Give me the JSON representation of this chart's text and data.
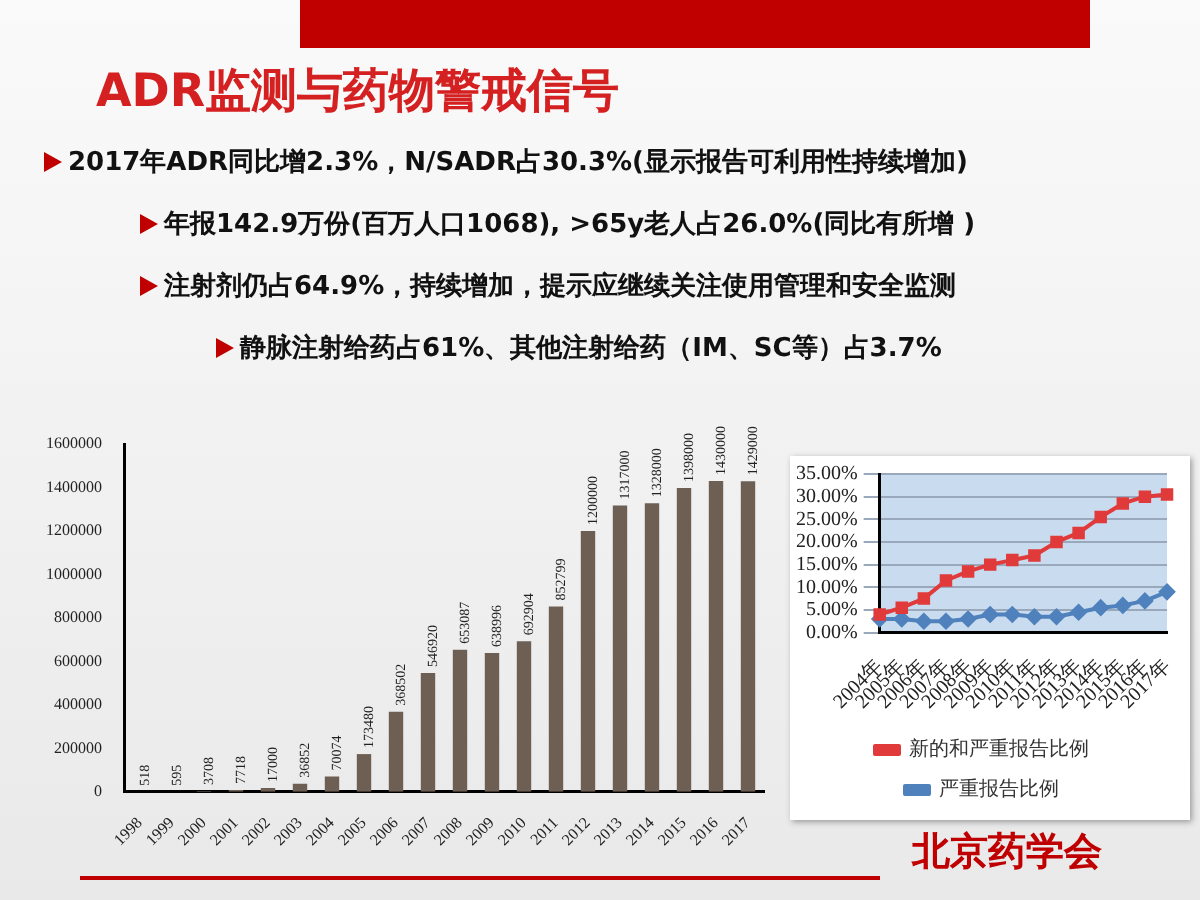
{
  "chart_data": [
    {
      "type": "bar",
      "title": "ADR监测与药物警戒信号",
      "annotations": [
        "2017年ADR同比增2.3%，N/SADR占30.3%(显示报告可利用性持续增加)",
        "年报142.9万份(百万人口1068), >65y老人占26.0%(同比有所增 )",
        "注射剂仍占64.9%，持续增加，提示应继续关注使用管理和安全监测",
        "静脉注射给药占61%、其他注射给药（IM、SC等）占3.7%",
        "北京药学会"
      ],
      "categories": [
        "1998",
        "1999",
        "2000",
        "2001",
        "2002",
        "2003",
        "2004",
        "2005",
        "2006",
        "2007",
        "2008",
        "2009",
        "2010",
        "2011",
        "2012",
        "2013",
        "2014",
        "2015",
        "2016",
        "2017"
      ],
      "values": [
        518,
        595,
        3708,
        7718,
        17000,
        36852,
        70074,
        173480,
        368502,
        546920,
        653087,
        638996,
        692904,
        852799,
        1200000,
        1317000,
        1328000,
        1398000,
        1430000,
        1429000
      ],
      "color": "#6e5f55",
      "ylim": [
        0,
        1600000
      ],
      "yticks": [
        0,
        200000,
        400000,
        600000,
        800000,
        1000000,
        1200000,
        1400000,
        1600000
      ],
      "data_labels": true
    },
    {
      "type": "line",
      "categories": [
        "2004年",
        "2005年",
        "2006年",
        "2007年",
        "2008年",
        "2009年",
        "2010年",
        "2011年",
        "2012年",
        "2013年",
        "2014年",
        "2015年",
        "2016年",
        "2017年"
      ],
      "series": [
        {
          "name": "严重报告比例",
          "color": "#4f81bd",
          "marker": "diamond",
          "values": [
            3,
            3,
            2.5,
            2.5,
            3,
            4,
            4,
            3.5,
            3.5,
            4.5,
            5.5,
            6,
            7,
            9
          ]
        },
        {
          "name": "新的和严重报告比例",
          "color": "#e03a3a",
          "marker": "square",
          "values": [
            4,
            5.5,
            7.5,
            11.5,
            13.5,
            15,
            16,
            17,
            20,
            22,
            25.5,
            28.5,
            30,
            30.5
          ]
        }
      ],
      "ylim": [
        0,
        35
      ],
      "yticks": [
        {
          "value": 0,
          "label": "0.00%"
        },
        {
          "value": 5,
          "label": "5.00%"
        },
        {
          "value": 10,
          "label": "10.00%"
        },
        {
          "value": 15,
          "label": "15.00%"
        },
        {
          "value": 20,
          "label": "20.00%"
        },
        {
          "value": 25,
          "label": "25.00%"
        },
        {
          "value": 30,
          "label": "30.00%"
        },
        {
          "value": 35,
          "label": "35.00%"
        }
      ],
      "grid": "y",
      "legend": "bottom"
    }
  ]
}
